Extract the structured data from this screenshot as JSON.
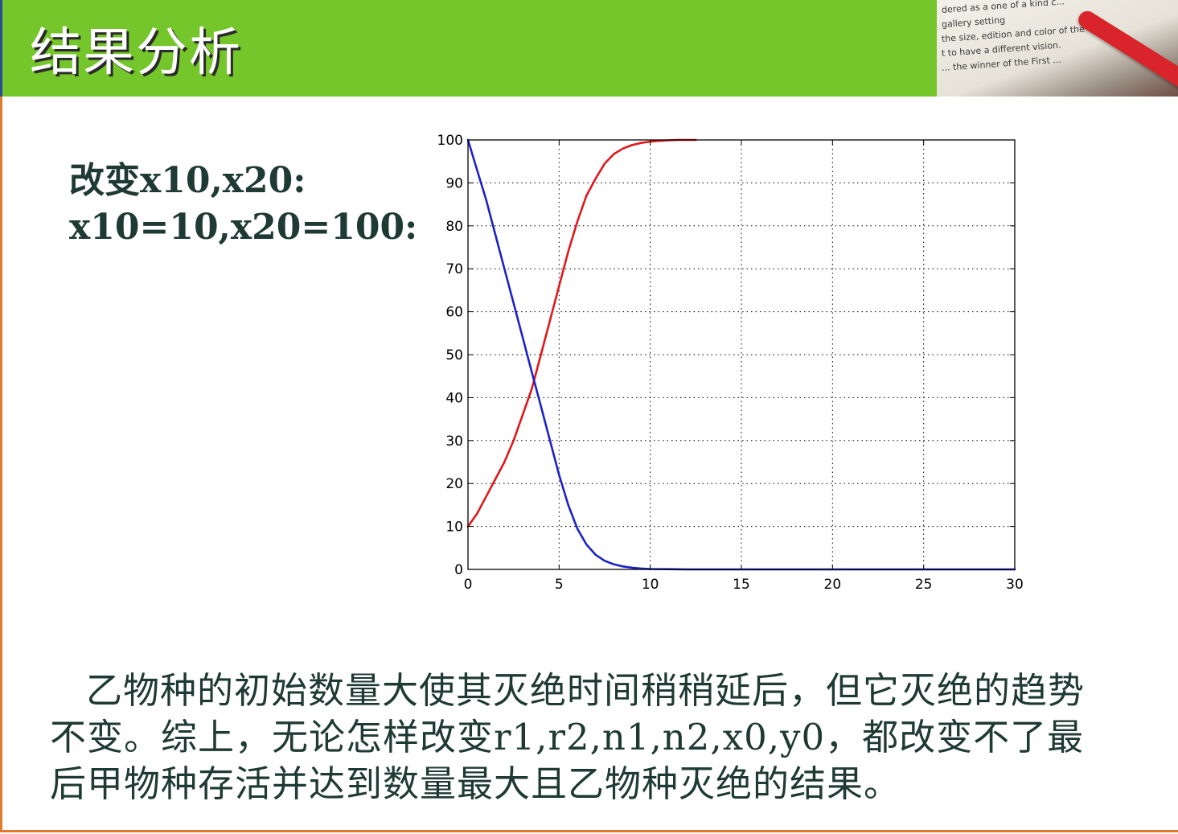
{
  "slide": {
    "title": "结果分析"
  },
  "header_photo": {
    "lines": [
      "dered as  a one of a kind c...",
      "gallery setting",
      "the size, edition and color of the",
      "t to have a different vision.",
      "... the winner of the First ..."
    ]
  },
  "params": {
    "line1": "改变x10,x20:",
    "line2": "x10=10,x20=100:"
  },
  "conclusion": {
    "text": "乙物种的初始数量大使其灭绝时间稍稍延后，但它灭绝的趋势不变。综上，无论怎样改变r1,r2,n1,n2,x0,y0，都改变不了最后甲物种存活并达到数量最大且乙物种灭绝的结果。"
  },
  "colors": {
    "header": "#74c62b",
    "series_red": "#e0181c",
    "series_blue": "#1c22c8",
    "text": "#1e3a32",
    "border": "#e07a2c"
  },
  "chart_data": {
    "type": "line",
    "title": "",
    "xlabel": "",
    "ylabel": "",
    "xlim": [
      0,
      30
    ],
    "ylim": [
      0,
      100
    ],
    "xticks": [
      0,
      5,
      10,
      15,
      20,
      25,
      30
    ],
    "yticks": [
      0,
      10,
      20,
      30,
      40,
      50,
      60,
      70,
      80,
      90,
      100
    ],
    "grid": true,
    "series": [
      {
        "color": "#e0181c",
        "x": [
          0,
          0.5,
          1,
          1.5,
          2,
          2.5,
          3,
          3.5,
          4,
          4.5,
          5,
          5.5,
          6,
          6.5,
          7,
          7.5,
          8,
          8.5,
          9,
          9.5,
          10,
          10.5,
          11,
          11.5,
          12,
          12.5
        ],
        "y": [
          10,
          13,
          17,
          21,
          25,
          30,
          36,
          42,
          50,
          58,
          66,
          74,
          81,
          87,
          91,
          94.5,
          96.7,
          98,
          98.8,
          99.3,
          99.6,
          99.8,
          99.9,
          100,
          100,
          100
        ]
      },
      {
        "color": "#1c22c8",
        "x": [
          0,
          0.5,
          1,
          1.5,
          2,
          2.5,
          3,
          3.5,
          4,
          4.5,
          5,
          5.5,
          6,
          6.5,
          7,
          7.5,
          8,
          8.5,
          9,
          9.5,
          10,
          11,
          12,
          15,
          20,
          25,
          30
        ],
        "y": [
          100,
          93,
          86,
          78,
          70,
          62,
          54,
          46,
          38,
          30,
          22,
          15,
          9.5,
          5.8,
          3.4,
          2.0,
          1.2,
          0.7,
          0.4,
          0.2,
          0.1,
          0.05,
          0,
          0,
          0,
          0,
          0
        ]
      }
    ]
  }
}
